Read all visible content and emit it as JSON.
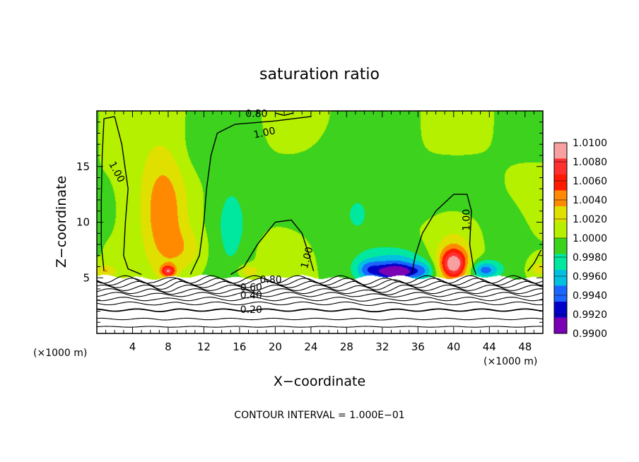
{
  "chart_data": {
    "type": "heatmap",
    "title": "saturation ratio",
    "xlabel": "X−coordinate",
    "ylabel": "Z−coordinate",
    "x_unit_label": "(×1000 m)",
    "y_unit_label": "(×1000 m)",
    "xlim": [
      0,
      50
    ],
    "ylim": [
      0,
      20
    ],
    "x_ticks": [
      4,
      8,
      12,
      16,
      20,
      24,
      28,
      32,
      36,
      40,
      44,
      48
    ],
    "y_ticks": [
      5,
      10,
      15
    ],
    "footer": "CONTOUR INTERVAL = 1.000E−01",
    "colorbar": {
      "labels": [
        "1.0100",
        "1.0080",
        "1.0060",
        "1.0040",
        "1.0020",
        "1.0000",
        "0.9980",
        "0.9960",
        "0.9940",
        "0.9920",
        "0.9900"
      ],
      "colors": [
        "#f7a0a0",
        "#ff3030",
        "#ff1a00",
        "#ff8a00",
        "#e0e000",
        "#b4f000",
        "#3cd21e",
        "#00e8a0",
        "#00c0e0",
        "#1a64ff",
        "#0000c8",
        "#7a00b4"
      ]
    },
    "contour_labels": [
      {
        "text": "1.00",
        "x": 2.2,
        "z": 14.5,
        "rot": 62
      },
      {
        "text": "1.00",
        "x": 18.8,
        "z": 18.0,
        "rot": -12
      },
      {
        "text": "0.80",
        "x": 17.9,
        "z": 19.7,
        "rot": 0
      },
      {
        "text": "1.00",
        "x": 23.6,
        "z": 6.8,
        "rot": -75
      },
      {
        "text": "1.00",
        "x": 41.5,
        "z": 10.2,
        "rot": -90
      },
      {
        "text": "0.80",
        "x": 19.5,
        "z": 4.8,
        "rot": 0
      },
      {
        "text": "0.60",
        "x": 17.3,
        "z": 4.1,
        "rot": 0
      },
      {
        "text": "0.40",
        "x": 17.3,
        "z": 3.4,
        "rot": 0
      },
      {
        "text": "0.20",
        "x": 17.3,
        "z": 2.1,
        "rot": 0
      }
    ],
    "features": [
      {
        "x": 7.5,
        "z": 10.5,
        "v": 1.0042,
        "rx": 2.3,
        "rz": 4.8
      },
      {
        "x": 7.0,
        "z": 13.0,
        "v": 1.002,
        "rx": 3.6,
        "rz": 6.0
      },
      {
        "x": 10.0,
        "z": 7.5,
        "v": 1.0025,
        "rx": 2.5,
        "rz": 2.0
      },
      {
        "x": 15.0,
        "z": 10.0,
        "v": 0.9972,
        "rx": 2.6,
        "rz": 5.0
      },
      {
        "x": 12.5,
        "z": 16.5,
        "v": 0.9985,
        "rx": 3.0,
        "rz": 2.5
      },
      {
        "x": 20.5,
        "z": 7.0,
        "v": 1.0015,
        "rx": 3.0,
        "rz": 2.0
      },
      {
        "x": 27.0,
        "z": 10.0,
        "v": 0.9992,
        "rx": 3.0,
        "rz": 6.0
      },
      {
        "x": 33.5,
        "z": 6.0,
        "v": 0.994,
        "rx": 3.0,
        "rz": 1.5
      },
      {
        "x": 33.5,
        "z": 5.5,
        "v": 0.9915,
        "rx": 1.8,
        "rz": 0.6
      },
      {
        "x": 30.5,
        "z": 5.7,
        "v": 0.995,
        "rx": 1.5,
        "rz": 0.9
      },
      {
        "x": 36.5,
        "z": 5.6,
        "v": 0.9955,
        "rx": 1.5,
        "rz": 0.9
      },
      {
        "x": 30.0,
        "z": 11.0,
        "v": 0.998,
        "rx": 3.0,
        "rz": 4.0
      },
      {
        "x": 40.0,
        "z": 6.2,
        "v": 1.01,
        "rx": 1.5,
        "rz": 1.3
      },
      {
        "x": 40.0,
        "z": 7.5,
        "v": 1.003,
        "rx": 2.3,
        "rz": 2.5
      },
      {
        "x": 43.5,
        "z": 5.7,
        "v": 0.993,
        "rx": 1.6,
        "rz": 0.8
      },
      {
        "x": 46.0,
        "z": 8.0,
        "v": 0.9988,
        "rx": 2.0,
        "rz": 3.0
      },
      {
        "x": 49.5,
        "z": 5.8,
        "v": 1.003,
        "rx": 1.2,
        "rz": 1.0
      },
      {
        "x": 1.0,
        "z": 5.6,
        "v": 1.004,
        "rx": 1.2,
        "rz": 0.6
      },
      {
        "x": 8.0,
        "z": 5.6,
        "v": 1.008,
        "rx": 0.8,
        "rz": 0.5
      },
      {
        "x": 17.0,
        "z": 5.6,
        "v": 1.004,
        "rx": 1.2,
        "rz": 0.6
      }
    ]
  }
}
